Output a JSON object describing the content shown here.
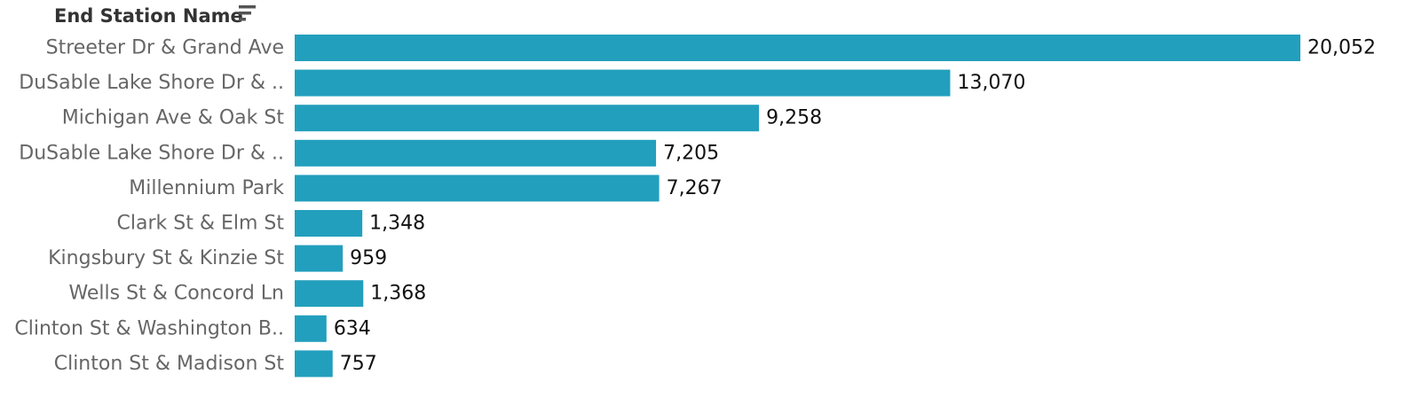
{
  "header": {
    "title": "End Station Name",
    "sort_icon": "sort-descending-icon"
  },
  "chart_data": {
    "type": "bar",
    "orientation": "horizontal",
    "categories": [
      "Streeter Dr & Grand Ave",
      "DuSable Lake Shore Dr & ..",
      "Michigan Ave & Oak St",
      "DuSable Lake Shore Dr & ..",
      "Millennium Park",
      "Clark St & Elm St",
      "Kingsbury St & Kinzie St",
      "Wells St & Concord Ln",
      "Clinton St & Washington B..",
      "Clinton St & Madison St"
    ],
    "values": [
      20052,
      13070,
      9258,
      7205,
      7267,
      1348,
      959,
      1368,
      634,
      757
    ],
    "value_labels": [
      "20,052",
      "13,070",
      "9,258",
      "7,205",
      "7,267",
      "1,348",
      "959",
      "1,368",
      "634",
      "757"
    ],
    "xlim": [
      0,
      20052
    ],
    "grid": false,
    "legend": "none",
    "bar_color": "#229FBD"
  }
}
